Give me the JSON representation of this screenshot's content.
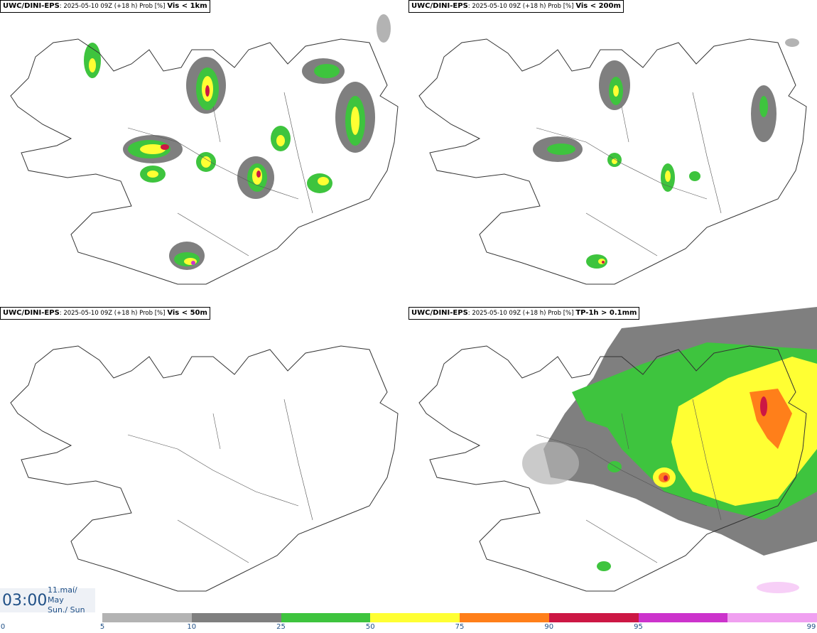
{
  "panels": [
    {
      "source": "UWC/DINI-EPS",
      "meta": ": 2025-05-10 09Z (+18 h) Prob [%]",
      "variable": "Vis < 1km"
    },
    {
      "source": "UWC/DINI-EPS",
      "meta": ": 2025-05-10 09Z (+18 h) Prob [%]",
      "variable": "Vis < 200m"
    },
    {
      "source": "UWC/DINI-EPS",
      "meta": ": 2025-05-10 09Z (+18 h) Prob [%]",
      "variable": "Vis < 50m"
    },
    {
      "source": "UWC/DINI-EPS",
      "meta": ": 2025-05-10 09Z (+18 h) Prob [%]",
      "variable": "TP-1h > 0.1mm"
    }
  ],
  "clock": {
    "time": "03:00",
    "date_line": "11.maí/ May",
    "day_line": "Sun./ Sun"
  },
  "legend": {
    "ticks": [
      "0",
      "5",
      "10",
      "25",
      "50",
      "75",
      "90",
      "95",
      "99"
    ],
    "colors": [
      "#b3b3b3",
      "#7f7f7f",
      "#3ec43e",
      "#ffff33",
      "#ff7f1a",
      "#cc1744",
      "#cc33cc",
      "#f0a0f0"
    ]
  }
}
